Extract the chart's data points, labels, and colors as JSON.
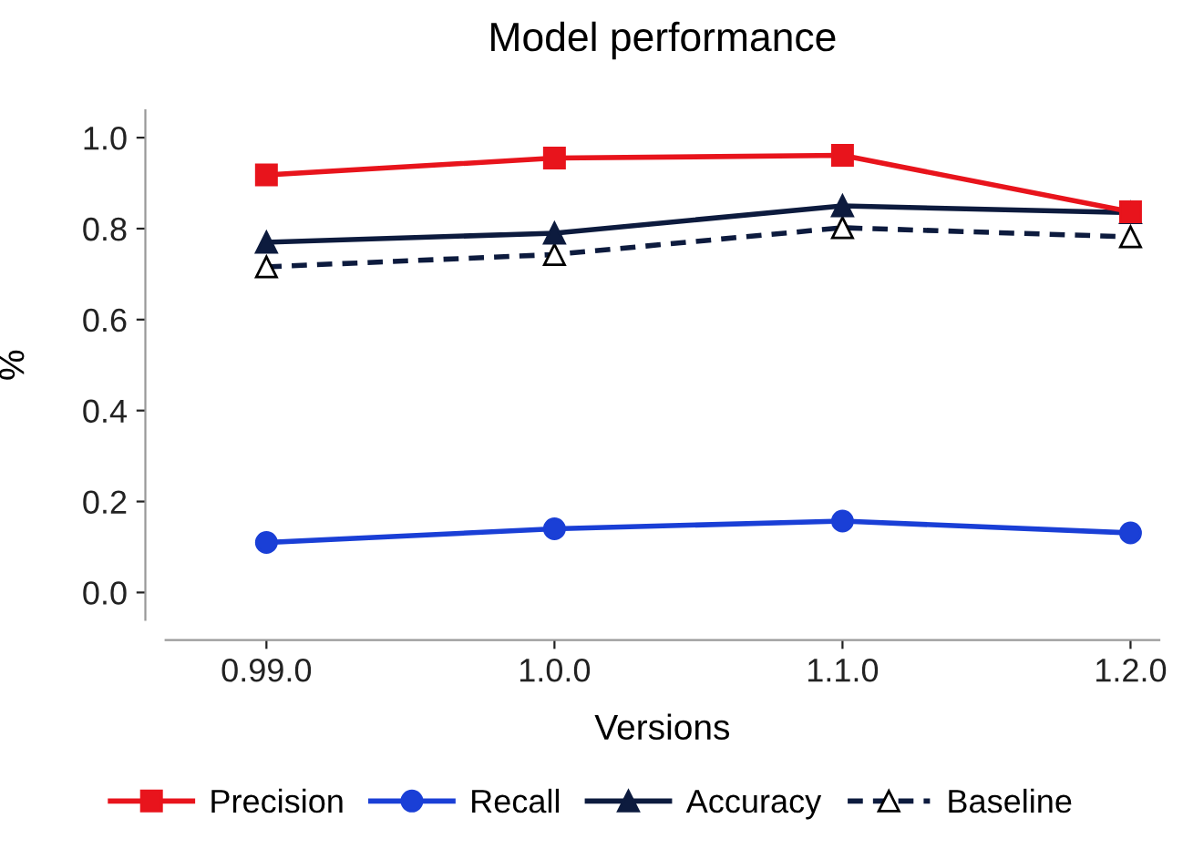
{
  "chart_data": {
    "type": "line",
    "title": "Model performance",
    "xlabel": "Versions",
    "ylabel": "%",
    "categories": [
      "0.99.0",
      "1.0.0",
      "1.1.0",
      "1.2.0"
    ],
    "series": [
      {
        "name": "Precision",
        "color": "#e8141c",
        "marker": "square",
        "line_style": "solid",
        "values": [
          0.918,
          0.955,
          0.961,
          0.837
        ]
      },
      {
        "name": "Recall",
        "color": "#1a3fd6",
        "marker": "circle",
        "line_style": "solid",
        "values": [
          0.11,
          0.14,
          0.157,
          0.131
        ]
      },
      {
        "name": "Accuracy",
        "color": "#0d1b3e",
        "marker": "triangle",
        "line_style": "solid",
        "values": [
          0.77,
          0.79,
          0.85,
          0.835
        ]
      },
      {
        "name": "Baseline",
        "color": "#0d1b3e",
        "marker": "triangle",
        "line_style": "dashed",
        "values": [
          0.716,
          0.743,
          0.802,
          0.782
        ]
      }
    ],
    "ylim": [
      -0.06,
      1.06
    ],
    "yticks": [
      {
        "value": 0,
        "label": "0.0"
      },
      0.2,
      0.4,
      0.6,
      0.8,
      {
        "value": 1,
        "label": "1.0"
      }
    ],
    "grid": false,
    "legend": "bottom"
  }
}
